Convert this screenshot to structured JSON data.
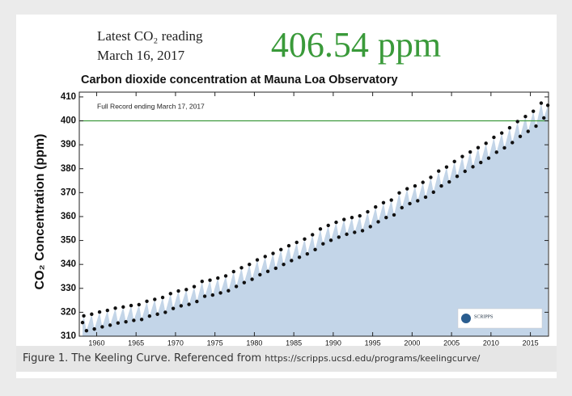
{
  "chart_data": {
    "type": "scatter",
    "reading_label": "Latest CO₂ reading",
    "reading_date": "March 16, 2017",
    "reading_value": "406.54 ppm",
    "title": "Carbon dioxide concentration at Mauna Loa Observatory",
    "annotation": "Full Record ending March 17, 2017",
    "y_label": "CO₂ Concentration (ppm)",
    "logo_text": "SCRIPPS",
    "color": "#111111",
    "area_color": "#c3d5e8",
    "reference_line": {
      "value": 400,
      "color": "#3f9a3f"
    },
    "xlim": [
      1957.8,
      2017.3
    ],
    "ylim": [
      310,
      412
    ],
    "xticks": [
      1960,
      1965,
      1970,
      1975,
      1980,
      1985,
      1990,
      1995,
      2000,
      2005,
      2010,
      2015
    ],
    "yticks": [
      310,
      320,
      330,
      340,
      350,
      360,
      370,
      380,
      390,
      400,
      410
    ],
    "x": [
      1958.21,
      1958.37,
      1958.71,
      1959.37,
      1959.71,
      1960.37,
      1960.71,
      1961.37,
      1961.71,
      1962.37,
      1962.71,
      1963.37,
      1963.71,
      1964.37,
      1964.71,
      1965.37,
      1965.71,
      1966.37,
      1966.71,
      1967.37,
      1967.71,
      1968.37,
      1968.71,
      1969.37,
      1969.71,
      1970.37,
      1970.71,
      1971.37,
      1971.71,
      1972.37,
      1972.71,
      1973.37,
      1973.71,
      1974.37,
      1974.71,
      1975.37,
      1975.71,
      1976.37,
      1976.71,
      1977.37,
      1977.71,
      1978.37,
      1978.71,
      1979.37,
      1979.71,
      1980.37,
      1980.71,
      1981.37,
      1981.71,
      1982.37,
      1982.71,
      1983.37,
      1983.71,
      1984.37,
      1984.71,
      1985.37,
      1985.71,
      1986.37,
      1986.71,
      1987.37,
      1987.71,
      1988.37,
      1988.71,
      1989.37,
      1989.71,
      1990.37,
      1990.71,
      1991.37,
      1991.71,
      1992.37,
      1992.71,
      1993.37,
      1993.71,
      1994.37,
      1994.71,
      1995.37,
      1995.71,
      1996.37,
      1996.71,
      1997.37,
      1997.71,
      1998.37,
      1998.71,
      1999.37,
      1999.71,
      2000.37,
      2000.71,
      2001.37,
      2001.71,
      2002.37,
      2002.71,
      2003.37,
      2003.71,
      2004.37,
      2004.71,
      2005.37,
      2005.71,
      2006.37,
      2006.71,
      2007.37,
      2007.71,
      2008.37,
      2008.71,
      2009.37,
      2009.71,
      2010.37,
      2010.71,
      2011.37,
      2011.71,
      2012.37,
      2012.71,
      2013.37,
      2013.71,
      2014.37,
      2014.71,
      2015.37,
      2015.71,
      2016.37,
      2016.71,
      2017.21
    ],
    "values": [
      315.7,
      318.5,
      312.3,
      319.2,
      313.0,
      320.1,
      313.9,
      320.8,
      314.6,
      321.7,
      315.5,
      322.2,
      316.0,
      322.8,
      316.6,
      323.2,
      317.0,
      324.6,
      318.4,
      325.4,
      319.2,
      326.2,
      320.0,
      327.8,
      321.6,
      328.9,
      322.7,
      329.5,
      323.3,
      330.7,
      324.5,
      332.9,
      326.7,
      333.4,
      327.2,
      334.3,
      328.1,
      335.2,
      329.0,
      337.0,
      330.8,
      338.6,
      332.4,
      340.0,
      333.8,
      341.9,
      335.7,
      343.3,
      337.1,
      344.6,
      338.4,
      346.2,
      340.0,
      347.8,
      341.6,
      349.2,
      343.0,
      350.6,
      344.4,
      352.4,
      346.2,
      354.8,
      348.6,
      356.3,
      350.1,
      357.6,
      351.4,
      358.8,
      352.6,
      359.6,
      353.4,
      360.3,
      354.1,
      362.0,
      355.8,
      364.0,
      357.8,
      365.8,
      359.6,
      366.9,
      360.7,
      369.9,
      363.7,
      371.6,
      365.4,
      372.8,
      366.6,
      374.3,
      368.1,
      376.4,
      370.2,
      379.0,
      372.8,
      380.7,
      374.5,
      383.0,
      376.8,
      385.1,
      378.9,
      387.0,
      380.8,
      388.8,
      382.6,
      390.6,
      384.4,
      393.1,
      386.9,
      394.9,
      388.7,
      397.1,
      390.9,
      399.7,
      393.5,
      401.8,
      395.6,
      404.0,
      397.8,
      407.4,
      401.2,
      406.5
    ]
  },
  "caption": {
    "text": "Figure 1. The Keeling Curve. Referenced from ",
    "link": "https://scripps.ucsd.edu/programs/keelingcurve/"
  }
}
